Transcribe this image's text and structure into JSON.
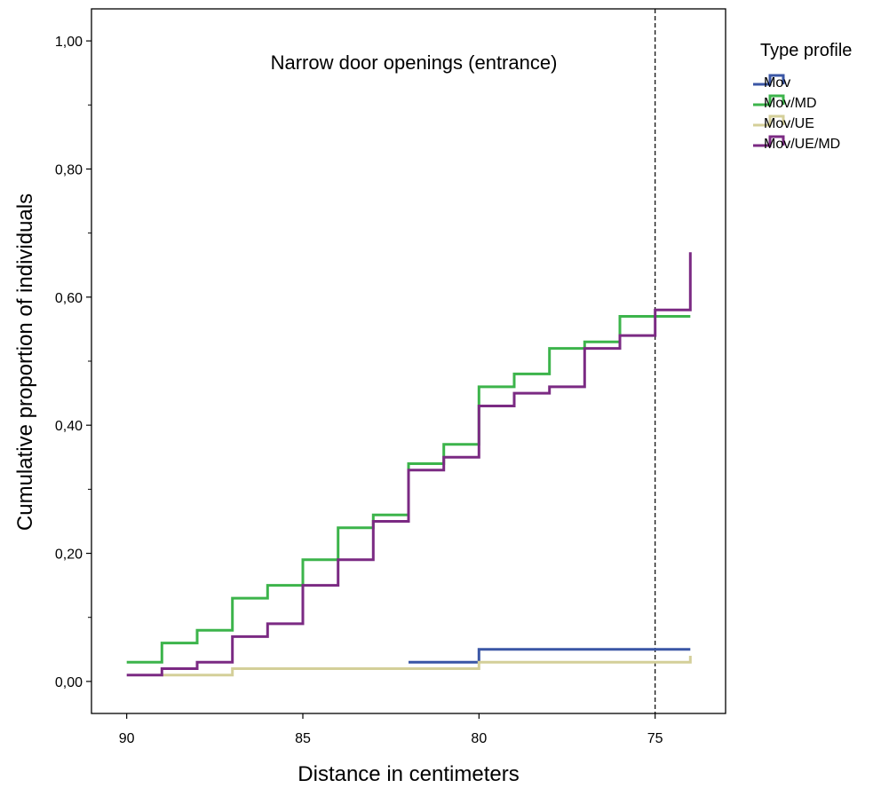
{
  "chart_data": {
    "type": "line",
    "step": true,
    "title": "Narrow door openings (entrance)",
    "xlabel": "Distance in centimeters",
    "ylabel": "Cumulative proportion of individuals",
    "xlim": [
      91,
      73
    ],
    "x_reversed": true,
    "ylim": [
      -0.05,
      1.05
    ],
    "x_ticks": [
      90,
      85,
      80,
      75
    ],
    "x_tick_labels": [
      "90",
      "85",
      "80",
      "75"
    ],
    "y_ticks": [
      0,
      0.2,
      0.4,
      0.6,
      0.8,
      1.0
    ],
    "y_tick_labels": [
      "0,00",
      "0,20",
      "0,40",
      "0,60",
      "0,80",
      "1,00"
    ],
    "reference_line": {
      "x": 75,
      "style": "dashed"
    },
    "legend": {
      "title": "Type profile",
      "placement": "outside-right"
    },
    "grid": false,
    "series": [
      {
        "name": "Mov",
        "color": "#3a56a5",
        "x": [
          82,
          80,
          74
        ],
        "y": [
          0.03,
          0.05,
          0.05
        ]
      },
      {
        "name": "Mov/MD",
        "color": "#3cb44b",
        "x": [
          90,
          89,
          88,
          87,
          86,
          85,
          84,
          83,
          82,
          81,
          80,
          79,
          78,
          77,
          76,
          74
        ],
        "y": [
          0.03,
          0.06,
          0.08,
          0.13,
          0.15,
          0.19,
          0.24,
          0.26,
          0.34,
          0.37,
          0.46,
          0.48,
          0.52,
          0.53,
          0.57,
          0.57
        ]
      },
      {
        "name": "Mov/UE",
        "color": "#d4cf99",
        "x": [
          89,
          87,
          80,
          74,
          74
        ],
        "y": [
          0.01,
          0.02,
          0.03,
          0.03,
          0.04
        ]
      },
      {
        "name": "Mov/UE/MD",
        "color": "#7b2a83",
        "x": [
          90,
          89,
          88,
          87,
          86,
          85,
          84,
          83,
          82,
          81,
          80,
          79,
          78,
          77,
          76,
          75,
          74,
          74
        ],
        "y": [
          0.01,
          0.02,
          0.03,
          0.07,
          0.09,
          0.15,
          0.19,
          0.25,
          0.33,
          0.35,
          0.43,
          0.45,
          0.46,
          0.52,
          0.54,
          0.58,
          0.58,
          0.67
        ]
      }
    ]
  }
}
